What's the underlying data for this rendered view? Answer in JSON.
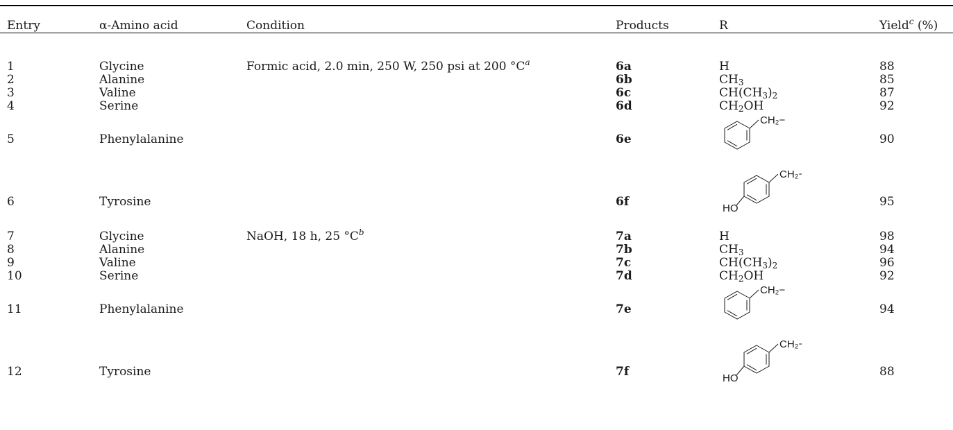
{
  "table": {
    "headers": {
      "entry": "Entry",
      "amino_acid": "α-Amino acid",
      "condition": "Condition",
      "products": "Products",
      "r": "R",
      "yield_main": "Yield",
      "yield_sup": "c",
      "yield_unit": " (%)"
    },
    "conditions": {
      "formic": "Formic acid, 2.0 min, 250 W, 250 psi at 200 °C",
      "formic_note": "a",
      "naoh": "NaOH, 18 h, 25 °C",
      "naoh_note": "b"
    },
    "r_groups": {
      "h": "H",
      "ch3_a": "CH",
      "ch3_b": "3",
      "ipr_a": "CH(CH",
      "ipr_b": "3",
      "ipr_c": ")",
      "ipr_d": "2",
      "ch2oh_a": "CH",
      "ch2oh_b": "2",
      "ch2oh_c": "OH",
      "benzyl_label": "CH₂−",
      "hydroxy_label": "HO"
    },
    "rows": [
      {
        "entry": "1",
        "acid": "Glycine",
        "product": "6a",
        "yield": "88"
      },
      {
        "entry": "2",
        "acid": "Alanine",
        "product": "6b",
        "yield": "85"
      },
      {
        "entry": "3",
        "acid": "Valine",
        "product": "6c",
        "yield": "87"
      },
      {
        "entry": "4",
        "acid": "Serine",
        "product": "6d",
        "yield": "92"
      },
      {
        "entry": "5",
        "acid": "Phenylalanine",
        "product": "6e",
        "yield": "90"
      },
      {
        "entry": "6",
        "acid": "Tyrosine",
        "product": "6f",
        "yield": "95"
      },
      {
        "entry": "7",
        "acid": "Glycine",
        "product": "7a",
        "yield": "98"
      },
      {
        "entry": "8",
        "acid": "Alanine",
        "product": "7b",
        "yield": "94"
      },
      {
        "entry": "9",
        "acid": "Valine",
        "product": "7c",
        "yield": "96"
      },
      {
        "entry": "10",
        "acid": "Serine",
        "product": "7d",
        "yield": "92"
      },
      {
        "entry": "11",
        "acid": "Phenylalanine",
        "product": "7e",
        "yield": "94"
      },
      {
        "entry": "12",
        "acid": "Tyrosine",
        "product": "7f",
        "yield": "88"
      }
    ]
  }
}
